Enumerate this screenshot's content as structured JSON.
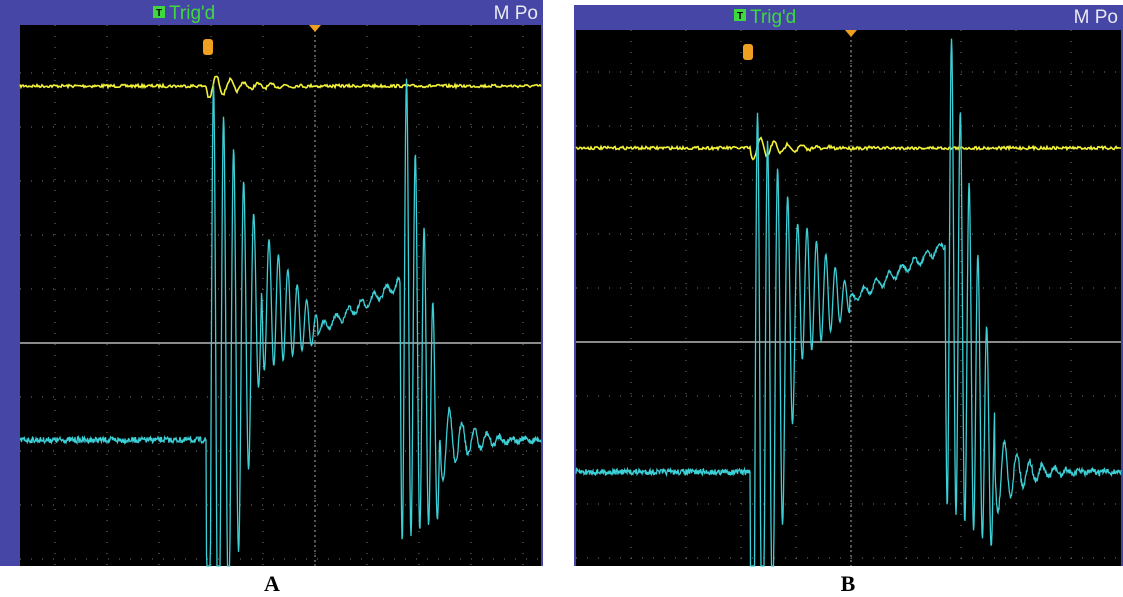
{
  "panels": [
    {
      "trigger_icon": "T",
      "trigger_status": "Trig'd",
      "menu": "M Po",
      "label": "A"
    },
    {
      "trigger_icon": "T",
      "trigger_status": "Trig'd",
      "menu": "M Po",
      "label": "B"
    }
  ]
}
